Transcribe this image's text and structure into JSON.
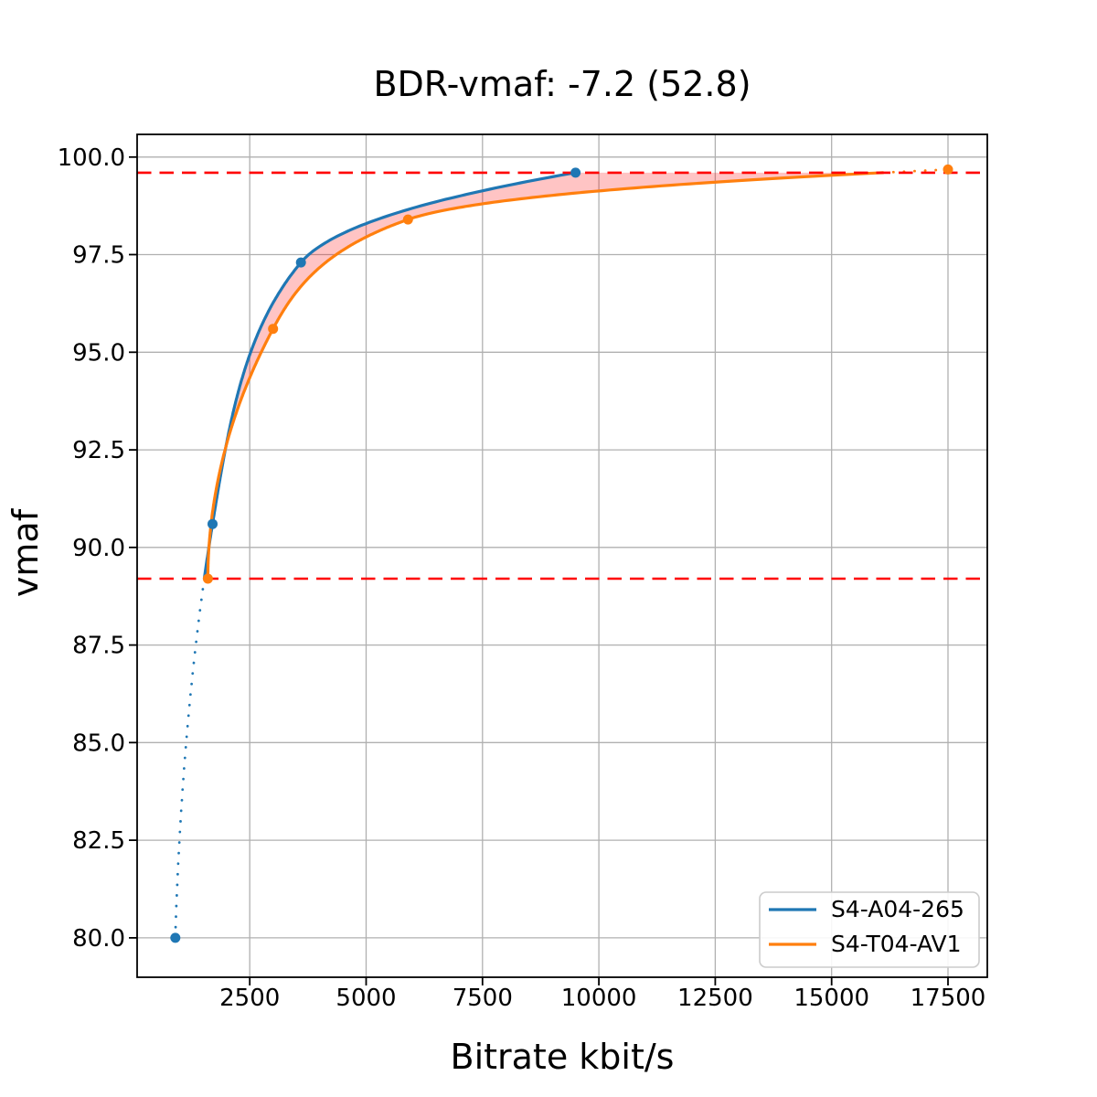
{
  "chart_data": {
    "type": "line",
    "title": "BDR-vmaf: -7.2 (52.8)",
    "xlabel": "Bitrate kbit/s",
    "ylabel": "vmaf",
    "xlim": [
      80,
      18345
    ],
    "ylim": [
      78.99,
      100.58
    ],
    "xticks": [
      2500,
      5000,
      7500,
      10000,
      12500,
      15000,
      17500
    ],
    "xtick_labels": [
      "2500",
      "5000",
      "7500",
      "10000",
      "12500",
      "15000",
      "17500"
    ],
    "yticks": [
      80.0,
      82.5,
      85.0,
      87.5,
      90.0,
      92.5,
      95.0,
      97.5,
      100.0
    ],
    "ytick_labels": [
      "80.0",
      "82.5",
      "85.0",
      "87.5",
      "90.0",
      "92.5",
      "95.0",
      "97.5",
      "100.0"
    ],
    "grid": true,
    "series": [
      {
        "name": "S4-A04-265",
        "color": "#1f77b4",
        "points": [
          [
            900,
            80.0
          ],
          [
            1700,
            90.6
          ],
          [
            3600,
            97.3
          ],
          [
            9500,
            99.6
          ]
        ],
        "dotted_below_quality": 89.2
      },
      {
        "name": "S4-T04-AV1",
        "color": "#ff7f0e",
        "points": [
          [
            1600,
            89.2
          ],
          [
            3000,
            95.6
          ],
          [
            5900,
            98.4
          ],
          [
            17500,
            99.68
          ]
        ],
        "dotted_above_quality": 99.6
      }
    ],
    "reference_lines": [
      {
        "y": 99.6,
        "color": "#ff0000",
        "style": "dashed"
      },
      {
        "y": 89.2,
        "color": "#ff0000",
        "style": "dashed"
      }
    ],
    "fill_between": {
      "series": [
        "S4-A04-265",
        "S4-T04-AV1"
      ],
      "quality_range": [
        89.2,
        99.6
      ],
      "color": "#ff0000",
      "alpha": 0.23
    },
    "legend": {
      "position": "lower right",
      "entries": [
        "S4-A04-265",
        "S4-T04-AV1"
      ]
    }
  },
  "palette": {
    "blue": "#1f77b4",
    "orange": "#ff7f0e",
    "red": "#ff0000",
    "grid": "#b0b0b0",
    "spine": "#000000",
    "text": "#000000",
    "legend_border": "#cccccc"
  }
}
